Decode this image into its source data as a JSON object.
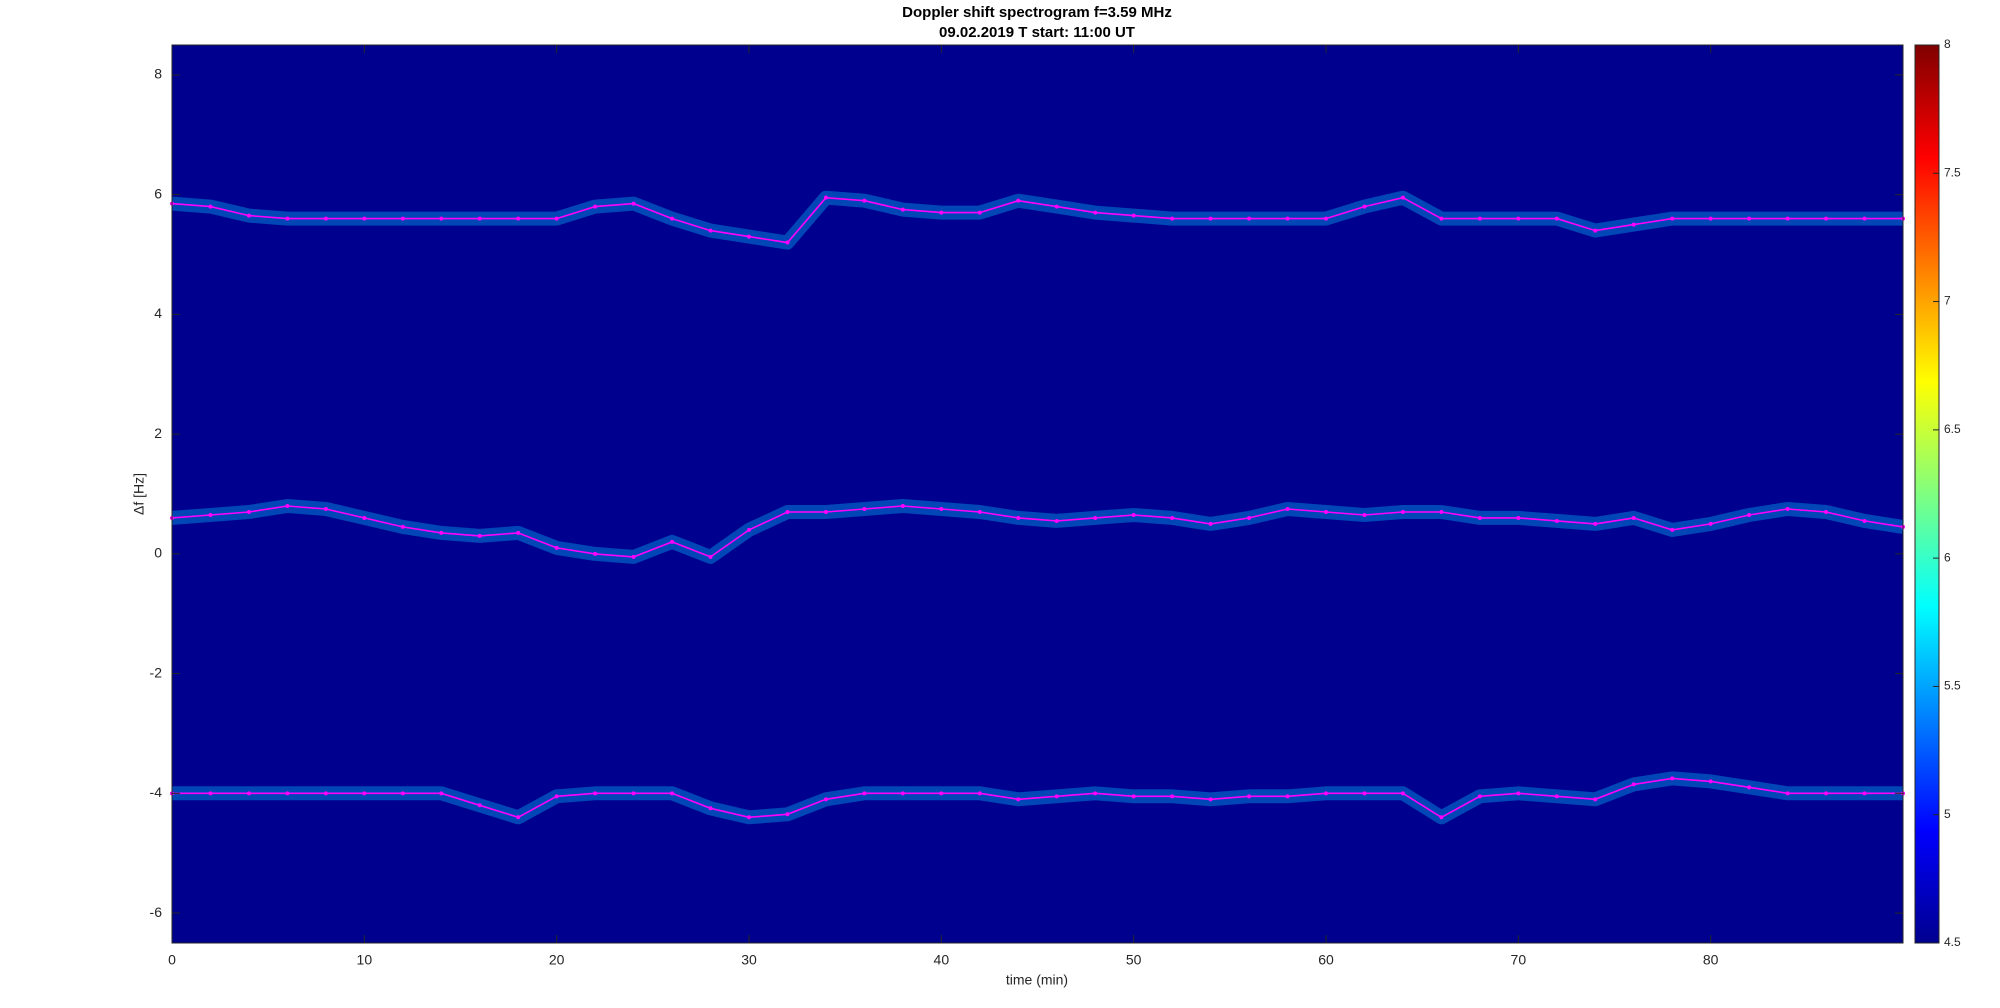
{
  "chart_data": {
    "type": "line",
    "title": "Doppler shift spectrogram f=3.59 MHz",
    "subtitle": "09.02.2019   T start: 11:00 UT",
    "x_label": "time (min)",
    "y_label": "Δf [Hz]",
    "background_color": "#00008f",
    "x": [
      0,
      2,
      4,
      6,
      8,
      10,
      12,
      14,
      16,
      18,
      20,
      22,
      24,
      26,
      28,
      30,
      32,
      34,
      36,
      38,
      40,
      42,
      44,
      46,
      48,
      50,
      52,
      54,
      56,
      58,
      60,
      62,
      64,
      66,
      68,
      70,
      72,
      74,
      76,
      78,
      80,
      82,
      84,
      86,
      88,
      90
    ],
    "series": [
      {
        "color": "#ff00ff",
        "values": [
          5.85,
          5.8,
          5.65,
          5.6,
          5.6,
          5.6,
          5.6,
          5.6,
          5.6,
          5.6,
          5.6,
          5.8,
          5.85,
          5.6,
          5.4,
          5.3,
          5.2,
          5.95,
          5.9,
          5.75,
          5.7,
          5.7,
          5.9,
          5.8,
          5.7,
          5.65,
          5.6,
          5.6,
          5.6,
          5.6,
          5.6,
          5.8,
          5.95,
          5.6,
          5.6,
          5.6,
          5.6,
          5.4,
          5.5,
          5.6,
          5.6,
          5.6,
          5.6,
          5.6,
          5.6,
          5.6
        ]
      },
      {
        "color": "#ff00ff",
        "values": [
          0.6,
          0.65,
          0.7,
          0.8,
          0.75,
          0.6,
          0.45,
          0.35,
          0.3,
          0.35,
          0.1,
          0.0,
          -0.05,
          0.2,
          -0.05,
          0.4,
          0.7,
          0.7,
          0.75,
          0.8,
          0.75,
          0.7,
          0.6,
          0.55,
          0.6,
          0.65,
          0.6,
          0.5,
          0.6,
          0.75,
          0.7,
          0.65,
          0.7,
          0.7,
          0.6,
          0.6,
          0.55,
          0.5,
          0.6,
          0.4,
          0.5,
          0.65,
          0.75,
          0.7,
          0.55,
          0.45
        ]
      },
      {
        "color": "#ff00ff",
        "values": [
          -4.0,
          -4.0,
          -4.0,
          -4.0,
          -4.0,
          -4.0,
          -4.0,
          -4.0,
          -4.2,
          -4.4,
          -4.05,
          -4.0,
          -4.0,
          -4.0,
          -4.25,
          -4.4,
          -4.35,
          -4.1,
          -4.0,
          -4.0,
          -4.0,
          -4.0,
          -4.1,
          -4.05,
          -4.0,
          -4.05,
          -4.05,
          -4.1,
          -4.05,
          -4.05,
          -4.0,
          -4.0,
          -4.0,
          -4.4,
          -4.05,
          -4.0,
          -4.05,
          -4.1,
          -3.85,
          -3.75,
          -3.8,
          -3.9,
          -4.0,
          -4.0,
          -4.0,
          -4.0
        ]
      }
    ],
    "xlim": [
      0,
      90
    ],
    "xticks": [
      0,
      10,
      20,
      30,
      40,
      50,
      60,
      70,
      80
    ],
    "ylim": [
      -6.5,
      8.5
    ],
    "yticks": [
      -6,
      -4,
      -2,
      0,
      2,
      4,
      6,
      8
    ],
    "clim": [
      4.5,
      8
    ],
    "cticks": [
      4.5,
      5,
      5.5,
      6,
      6.5,
      7,
      7.5,
      8
    ]
  }
}
